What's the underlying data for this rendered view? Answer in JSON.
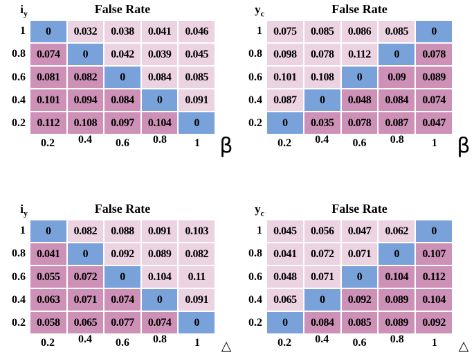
{
  "palette": {
    "blue": "#7aa2da",
    "dark_pink": "#cd90b6",
    "light_pink": "#ecd3e1",
    "gap": "#ffffff",
    "text": "#000000",
    "background": "#ffffff"
  },
  "chart_data": [
    {
      "type": "heatmap",
      "position": "top-left",
      "title": "False Rate",
      "y_label": {
        "base": "i",
        "sub": "y"
      },
      "x_symbol": "β",
      "row_labels": [
        "1",
        "0.8",
        "0.6",
        "0.4",
        "0.2"
      ],
      "col_labels": [
        "0.2",
        "0.4",
        "0.6",
        "0.8",
        "1"
      ],
      "values": [
        [
          "0",
          "0.032",
          "0.038",
          "0.041",
          "0.046"
        ],
        [
          "0.074",
          "0",
          "0.042",
          "0.039",
          "0.045"
        ],
        [
          "0.081",
          "0.082",
          "0",
          "0.084",
          "0.085"
        ],
        [
          "0.101",
          "0.094",
          "0.084",
          "0",
          "0.091"
        ],
        [
          "0.112",
          "0.108",
          "0.097",
          "0.104",
          "0"
        ]
      ],
      "cell_colors": [
        [
          "blue",
          "light_pink",
          "light_pink",
          "light_pink",
          "light_pink"
        ],
        [
          "dark_pink",
          "blue",
          "light_pink",
          "light_pink",
          "light_pink"
        ],
        [
          "dark_pink",
          "dark_pink",
          "blue",
          "light_pink",
          "light_pink"
        ],
        [
          "dark_pink",
          "dark_pink",
          "dark_pink",
          "blue",
          "light_pink"
        ],
        [
          "dark_pink",
          "dark_pink",
          "dark_pink",
          "dark_pink",
          "blue"
        ]
      ]
    },
    {
      "type": "heatmap",
      "position": "top-right",
      "title": "False Rate",
      "y_label": {
        "base": "y",
        "sub": "c"
      },
      "x_symbol": "β",
      "row_labels": [
        "1",
        "0.8",
        "0.6",
        "0.4",
        "0.2"
      ],
      "col_labels": [
        "0.2",
        "0.4",
        "0.6",
        "0.8",
        "1"
      ],
      "values": [
        [
          "0.075",
          "0.085",
          "0.086",
          "0.085",
          "0"
        ],
        [
          "0.098",
          "0.078",
          "0.112",
          "0",
          "0.078"
        ],
        [
          "0.101",
          "0.108",
          "0",
          "0.09",
          "0.089"
        ],
        [
          "0.087",
          "0",
          "0.048",
          "0.084",
          "0.074"
        ],
        [
          "0",
          "0.035",
          "0.078",
          "0.087",
          "0.047"
        ]
      ],
      "cell_colors": [
        [
          "light_pink",
          "light_pink",
          "light_pink",
          "light_pink",
          "blue"
        ],
        [
          "light_pink",
          "light_pink",
          "light_pink",
          "blue",
          "dark_pink"
        ],
        [
          "light_pink",
          "light_pink",
          "blue",
          "dark_pink",
          "dark_pink"
        ],
        [
          "light_pink",
          "blue",
          "dark_pink",
          "dark_pink",
          "dark_pink"
        ],
        [
          "blue",
          "dark_pink",
          "dark_pink",
          "dark_pink",
          "dark_pink"
        ]
      ]
    },
    {
      "type": "heatmap",
      "position": "bottom-left",
      "title": "False Rate",
      "y_label": {
        "base": "i",
        "sub": "y"
      },
      "x_symbol": "△",
      "row_labels": [
        "1",
        "0.8",
        "0.6",
        "0.4",
        "0.2"
      ],
      "col_labels": [
        "0.2",
        "0.4",
        "0.6",
        "0.8",
        "1"
      ],
      "values": [
        [
          "0",
          "0.082",
          "0.088",
          "0.091",
          "0.103"
        ],
        [
          "0.041",
          "0",
          "0.092",
          "0.089",
          "0.082"
        ],
        [
          "0.055",
          "0.072",
          "0",
          "0.104",
          "0.11"
        ],
        [
          "0.063",
          "0.071",
          "0.074",
          "0",
          "0.091"
        ],
        [
          "0.058",
          "0.065",
          "0.077",
          "0.074",
          "0"
        ]
      ],
      "cell_colors": [
        [
          "blue",
          "light_pink",
          "light_pink",
          "light_pink",
          "light_pink"
        ],
        [
          "dark_pink",
          "blue",
          "light_pink",
          "light_pink",
          "light_pink"
        ],
        [
          "dark_pink",
          "dark_pink",
          "blue",
          "light_pink",
          "light_pink"
        ],
        [
          "dark_pink",
          "dark_pink",
          "dark_pink",
          "blue",
          "light_pink"
        ],
        [
          "dark_pink",
          "dark_pink",
          "dark_pink",
          "dark_pink",
          "blue"
        ]
      ]
    },
    {
      "type": "heatmap",
      "position": "bottom-right",
      "title": "False Rate",
      "y_label": {
        "base": "y",
        "sub": "c"
      },
      "x_symbol": "△",
      "row_labels": [
        "1",
        "0.8",
        "0.6",
        "0.4",
        "0.2"
      ],
      "col_labels": [
        "0.2",
        "0.4",
        "0.6",
        "0.8",
        "1"
      ],
      "values": [
        [
          "0.045",
          "0.056",
          "0.047",
          "0.062",
          "0"
        ],
        [
          "0.041",
          "0.072",
          "0.071",
          "0",
          "0.107"
        ],
        [
          "0.048",
          "0.071",
          "0",
          "0.104",
          "0.112"
        ],
        [
          "0.065",
          "0",
          "0.092",
          "0.089",
          "0.104"
        ],
        [
          "0",
          "0.084",
          "0.085",
          "0.089",
          "0.092"
        ]
      ],
      "cell_colors": [
        [
          "light_pink",
          "light_pink",
          "light_pink",
          "light_pink",
          "blue"
        ],
        [
          "light_pink",
          "light_pink",
          "light_pink",
          "blue",
          "dark_pink"
        ],
        [
          "light_pink",
          "light_pink",
          "blue",
          "dark_pink",
          "dark_pink"
        ],
        [
          "light_pink",
          "blue",
          "dark_pink",
          "dark_pink",
          "dark_pink"
        ],
        [
          "blue",
          "dark_pink",
          "dark_pink",
          "dark_pink",
          "dark_pink"
        ]
      ]
    }
  ]
}
